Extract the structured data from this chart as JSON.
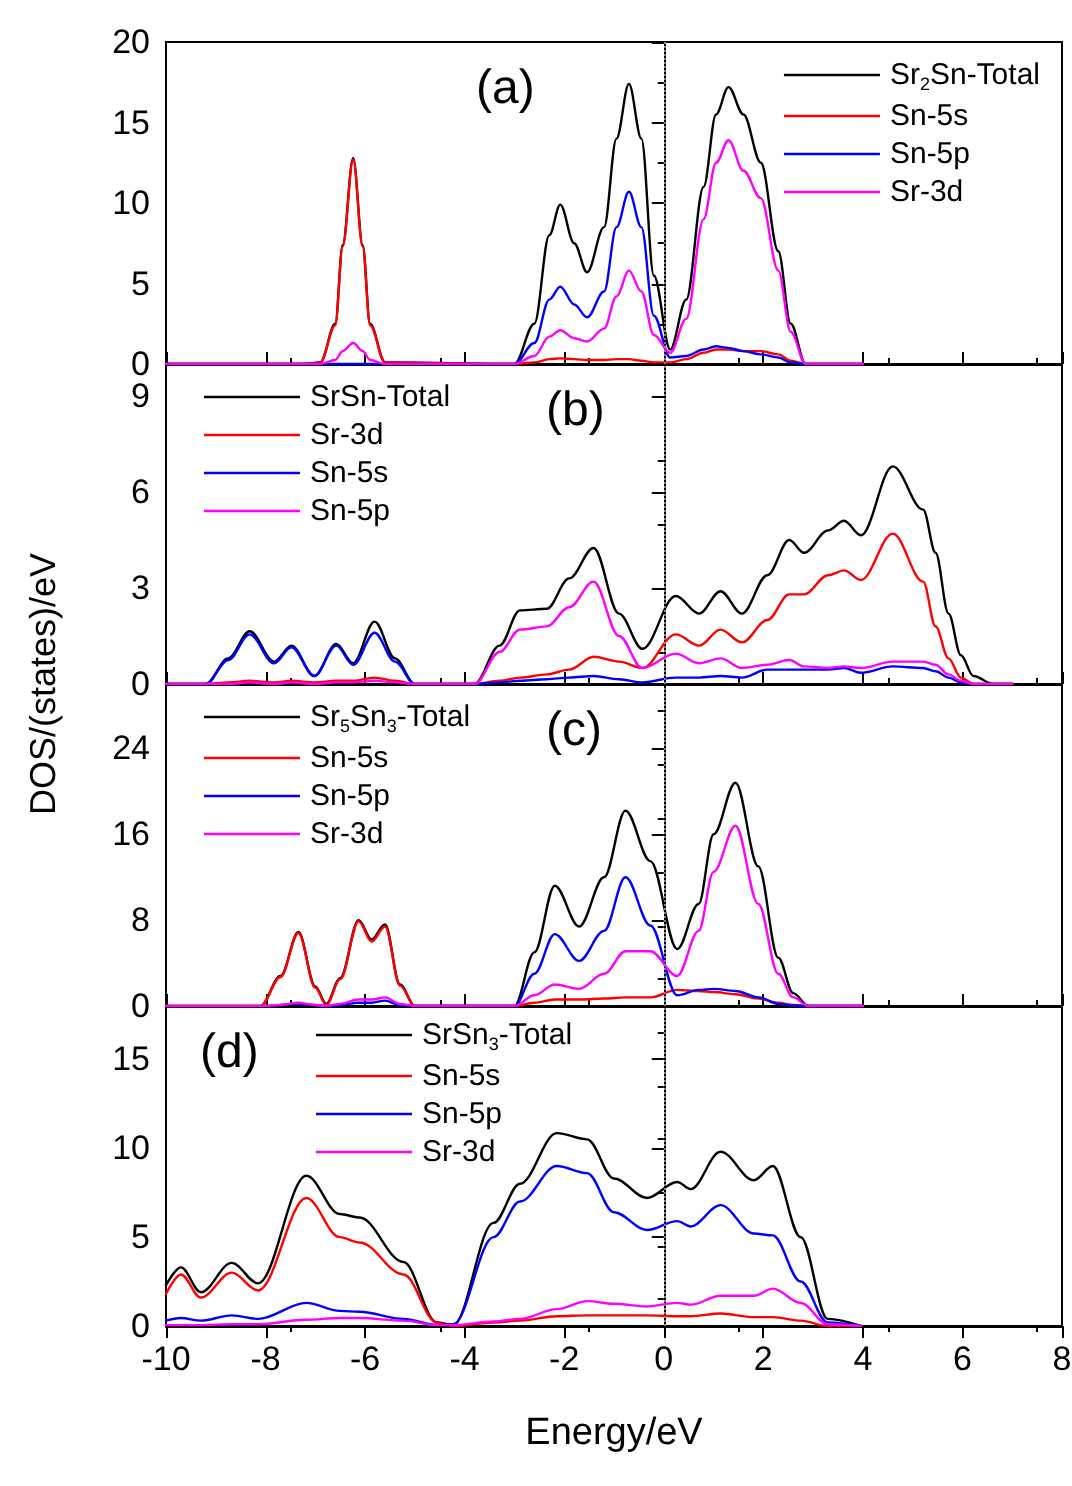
{
  "chart_data": [
    {
      "type": "line",
      "title": "(a)",
      "x": [
        -10,
        -7.2,
        -6.9,
        -6.6,
        -6.45,
        -6.24,
        -6.05,
        -5.9,
        -5.6,
        -3,
        -2.6,
        -2.3,
        -2.08,
        -1.8,
        -1.54,
        -1.2,
        -0.95,
        -0.7,
        -0.45,
        -0.2,
        0.13,
        0.45,
        0.8,
        1.05,
        1.3,
        1.6,
        1.95,
        2.3,
        2.55,
        2.85,
        4
      ],
      "series": [
        {
          "name": "Sr$_{2}$Sn-Total",
          "color": "#000000",
          "values": [
            0,
            0,
            0.1,
            2.5,
            7.4,
            12.8,
            7.4,
            2.5,
            0.1,
            0,
            2.5,
            8.0,
            9.9,
            7.5,
            5.7,
            8.5,
            14,
            17.4,
            14,
            5.5,
            0.9,
            4,
            11,
            15.5,
            17.2,
            15.5,
            12.5,
            7,
            2.5,
            0,
            0
          ]
        },
        {
          "name": "Sn-5s",
          "color": "#ff0000",
          "values": [
            0,
            0,
            0.1,
            2.4,
            7.3,
            12.7,
            7.3,
            2.4,
            0.1,
            0,
            0.1,
            0.3,
            0.35,
            0.3,
            0.25,
            0.25,
            0.3,
            0.3,
            0.2,
            0.1,
            0.1,
            0.3,
            0.7,
            0.9,
            0.9,
            0.8,
            0.8,
            0.6,
            0.2,
            0,
            0
          ]
        },
        {
          "name": "Sn-5p",
          "color": "#0000ff",
          "values": [
            0,
            0,
            0,
            0,
            0,
            0,
            0,
            0,
            0,
            0,
            1.3,
            4,
            4.8,
            3.7,
            2.9,
            4.5,
            8.5,
            10.7,
            8.5,
            3,
            0.4,
            0.5,
            0.9,
            1.1,
            1.0,
            0.8,
            0.6,
            0.4,
            0.1,
            0,
            0
          ]
        },
        {
          "name": "Sr-3d",
          "color": "#ff00ff",
          "values": [
            0,
            0,
            0,
            0.25,
            0.8,
            1.3,
            0.8,
            0.25,
            0,
            0,
            0.5,
            1.7,
            2.1,
            1.6,
            1.4,
            2.2,
            4.2,
            5.8,
            4.5,
            1.8,
            0.7,
            2.8,
            9,
            12.5,
            13.9,
            12,
            10.3,
            5.8,
            2,
            0,
            0
          ]
        }
      ],
      "xlim": [
        -10,
        8
      ],
      "xticks": [
        -10,
        -8,
        -6,
        -4,
        -2,
        0,
        2,
        4,
        6,
        8
      ],
      "ylim": [
        0,
        20
      ],
      "yticks": [
        0,
        5,
        10,
        15,
        20
      ],
      "tick_labels": "y",
      "grid": false,
      "legend": "top right",
      "marker": "none",
      "line_style": "solid",
      "ref_lines": [
        {
          "axis": "x",
          "value": 0,
          "color": "#808080",
          "line_style": "dotted"
        }
      ]
    },
    {
      "type": "line",
      "title": "(b)",
      "ylabel": "DOS/(states)/eV",
      "x": [
        -10,
        -9.2,
        -8.75,
        -8.32,
        -7.83,
        -7.48,
        -7.02,
        -6.58,
        -6.24,
        -5.81,
        -5.4,
        -5.0,
        -3.8,
        -3.3,
        -2.89,
        -2.35,
        -1.9,
        -1.41,
        -0.9,
        -0.43,
        0.24,
        0.71,
        1.14,
        1.57,
        2.08,
        2.52,
        2.82,
        3.3,
        3.62,
        3.96,
        4.6,
        5.21,
        5.46,
        5.72,
        5.97,
        6.22,
        6.62,
        7
      ],
      "series": [
        {
          "name": "SrSn-Total",
          "color": "#000000",
          "values": [
            0,
            0,
            0.8,
            1.65,
            0.7,
            1.2,
            0.25,
            1.25,
            0.65,
            1.95,
            0.8,
            0,
            0,
            1.2,
            2.3,
            2.35,
            3.3,
            4.25,
            2.2,
            1.1,
            2.75,
            2.2,
            2.9,
            2.2,
            3.4,
            4.5,
            4.1,
            4.8,
            5.1,
            4.65,
            6.8,
            5.45,
            4.1,
            2.2,
            0.9,
            0.25,
            0,
            0
          ]
        },
        {
          "name": "Sr-3d",
          "color": "#ff0000",
          "values": [
            0,
            0,
            0.05,
            0.1,
            0.05,
            0.1,
            0.05,
            0.1,
            0.1,
            0.2,
            0.1,
            0,
            0,
            0.1,
            0.2,
            0.3,
            0.45,
            0.85,
            0.7,
            0.5,
            1.55,
            1.2,
            1.7,
            1.3,
            2.0,
            2.8,
            2.8,
            3.4,
            3.55,
            3.25,
            4.7,
            3.2,
            1.8,
            0.8,
            0.2,
            0,
            0,
            0
          ]
        },
        {
          "name": "Sn-5s",
          "color": "#0000ff",
          "values": [
            0,
            0,
            0.75,
            1.55,
            0.65,
            1.15,
            0.25,
            1.2,
            0.6,
            1.6,
            0.7,
            0,
            0,
            0.05,
            0.1,
            0.15,
            0.2,
            0.25,
            0.15,
            0.05,
            0.2,
            0.2,
            0.25,
            0.2,
            0.45,
            0.45,
            0.45,
            0.45,
            0.5,
            0.35,
            0.55,
            0.5,
            0.4,
            0.2,
            0.05,
            0,
            0,
            0
          ]
        },
        {
          "name": "Sn-5p",
          "color": "#ff00ff",
          "values": [
            0,
            0,
            0,
            0.05,
            0,
            0.05,
            0,
            0.05,
            0.05,
            0.1,
            0.05,
            0,
            0,
            1.0,
            1.7,
            1.8,
            2.4,
            3.2,
            1.5,
            0.5,
            0.95,
            0.65,
            0.8,
            0.5,
            0.6,
            0.75,
            0.55,
            0.5,
            0.55,
            0.5,
            0.7,
            0.7,
            0.6,
            0.3,
            0.1,
            0,
            0,
            0
          ]
        }
      ],
      "xlim": [
        -10,
        8
      ],
      "xticks": [
        -10,
        -8,
        -6,
        -4,
        -2,
        0,
        2,
        4,
        6,
        8
      ],
      "ylim": [
        0,
        10
      ],
      "yticks": [
        0,
        3,
        6,
        9
      ],
      "tick_labels": "y",
      "grid": false,
      "legend": "top left",
      "marker": "none",
      "line_style": "solid",
      "ref_lines": [
        {
          "axis": "x",
          "value": 0,
          "color": "#808080",
          "line_style": "dotted"
        }
      ]
    },
    {
      "type": "line",
      "title": "(c)",
      "x": [
        -10,
        -8.1,
        -7.7,
        -7.34,
        -7.0,
        -6.78,
        -6.5,
        -6.13,
        -5.87,
        -5.6,
        -5.3,
        -5.0,
        -3.0,
        -2.6,
        -2.19,
        -1.7,
        -1.2,
        -0.77,
        -0.27,
        0.27,
        0.7,
        1.0,
        1.44,
        1.9,
        2.3,
        2.6,
        2.9,
        4
      ],
      "series": [
        {
          "name": "Sr$_{5}$Sn$_{3}$-Total",
          "color": "#000000",
          "values": [
            0,
            0,
            2.8,
            6.9,
            1.8,
            0.2,
            2.6,
            8.0,
            6.2,
            7.6,
            2.0,
            0,
            0,
            5,
            11.2,
            7.4,
            12,
            18.2,
            13.5,
            5.3,
            9.5,
            16,
            20.8,
            13,
            4.5,
            1.2,
            0,
            0
          ]
        },
        {
          "name": "Sn-5s",
          "color": "#ff0000",
          "values": [
            0,
            0,
            2.7,
            6.8,
            1.7,
            0.1,
            2.5,
            7.9,
            6.0,
            7.4,
            1.9,
            0,
            0,
            0.3,
            0.6,
            0.6,
            0.7,
            0.8,
            0.8,
            1.5,
            1.4,
            1.3,
            1.1,
            0.7,
            0.3,
            0.1,
            0,
            0
          ]
        },
        {
          "name": "Sn-5p",
          "color": "#0000ff",
          "values": [
            null,
            null,
            0.1,
            0.2,
            0.1,
            0,
            0.1,
            0.3,
            0.3,
            0.5,
            0.1,
            0,
            0,
            3,
            6.7,
            4.2,
            7,
            12.0,
            7.5,
            1.0,
            1.5,
            1.6,
            1.4,
            0.8,
            0.2,
            0.05,
            0,
            0
          ]
        },
        {
          "name": "Sr-3d",
          "color": "#ff00ff",
          "values": [
            0,
            0,
            0.1,
            0.3,
            0.1,
            0,
            0.2,
            0.6,
            0.6,
            0.8,
            0.2,
            0,
            0,
            1.0,
            2.0,
            1.6,
            3,
            5.1,
            5.1,
            2.8,
            7,
            12.5,
            16.8,
            9.5,
            3.0,
            0.8,
            0,
            0
          ]
        }
      ],
      "xlim": [
        -10,
        8
      ],
      "xticks": [
        -10,
        -8,
        -6,
        -4,
        -2,
        0,
        2,
        4,
        6,
        8
      ],
      "ylim": [
        0,
        30
      ],
      "yticks": [
        0,
        8,
        16,
        24
      ],
      "tick_labels": "y",
      "grid": false,
      "legend": "top left",
      "marker": "none",
      "line_style": "solid",
      "ref_lines": [
        {
          "axis": "x",
          "value": 0,
          "color": "#808080",
          "line_style": "dotted"
        }
      ]
    },
    {
      "type": "line",
      "title": "(d)",
      "xlabel": "Energy/eV",
      "x": [
        -10,
        -9.7,
        -9.3,
        -8.68,
        -8.15,
        -7.18,
        -6.51,
        -6.11,
        -5.23,
        -4.56,
        -4.23,
        -3.42,
        -2.89,
        -2.15,
        -1.54,
        -1.0,
        -0.34,
        0.27,
        0.54,
        1.14,
        1.81,
        2.19,
        2.75,
        3.29,
        3.96
      ],
      "series": [
        {
          "name": "SrSn$_{3}$-Total",
          "color": "#000000",
          "values": [
            2.3,
            3.3,
            1.9,
            3.55,
            2.4,
            8.45,
            6.3,
            6.1,
            3.6,
            0.2,
            0.05,
            5.8,
            8,
            10.85,
            10.5,
            8.3,
            7.2,
            8.1,
            7.7,
            9.8,
            8.2,
            9.0,
            5,
            0.4,
            0
          ]
        },
        {
          "name": "Sn-5s",
          "color": "#ff0000",
          "values": [
            1.8,
            2.9,
            1.6,
            3.0,
            2.0,
            7.2,
            5.0,
            4.7,
            2.9,
            0.2,
            0,
            0.2,
            0.3,
            0.55,
            0.6,
            0.6,
            0.6,
            0.55,
            0.55,
            0.7,
            0.5,
            0.5,
            0.3,
            0,
            0
          ]
        },
        {
          "name": "Sn-5p",
          "color": "#0000ff",
          "values": [
            0.3,
            0.45,
            0.3,
            0.6,
            0.4,
            1.3,
            0.85,
            0.8,
            0.4,
            0.05,
            0.1,
            5.0,
            7.0,
            9.0,
            8.6,
            6.4,
            5.4,
            5.9,
            5.6,
            6.8,
            5.2,
            5.1,
            2.5,
            0.2,
            0
          ]
        },
        {
          "name": "Sr-3d",
          "color": "#ff00ff",
          "values": [
            0.05,
            0.05,
            0.05,
            0.1,
            0.1,
            0.35,
            0.45,
            0.45,
            0.3,
            0.05,
            0.05,
            0.25,
            0.4,
            0.95,
            1.4,
            1.25,
            1.1,
            1.3,
            1.2,
            1.7,
            1.7,
            2.1,
            1.3,
            0.1,
            0
          ]
        }
      ],
      "xlim": [
        -10,
        8
      ],
      "xticks": [
        -10,
        -8,
        -6,
        -4,
        -2,
        0,
        2,
        4,
        6,
        8
      ],
      "ylim": [
        0,
        18
      ],
      "yticks": [
        0,
        5,
        10,
        15
      ],
      "grid": false,
      "legend": "top",
      "marker": "none",
      "line_style": "solid",
      "ref_lines": [
        {
          "axis": "x",
          "value": 0,
          "color": "#808080",
          "line_style": "dotted"
        }
      ]
    }
  ]
}
